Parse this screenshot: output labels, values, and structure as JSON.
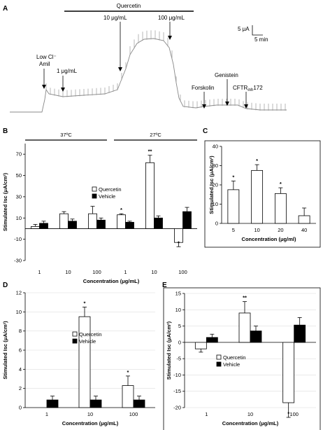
{
  "figure": {
    "panel_labels": [
      "A",
      "B",
      "C",
      "D",
      "E"
    ]
  },
  "trace": {
    "title_bar": "Quercetin",
    "annotations": [
      "Low Cl⁻",
      "Amil",
      "1 μg/mL",
      "10 μg/mL",
      "100 μg/mL",
      "Forskolin",
      "Genistein",
      "CFTRinh172"
    ],
    "cftr_main": "CFTR",
    "cftr_sub": "inh",
    "cftr_suffix": "172",
    "scale_y": "5 μA",
    "scale_x": "5 min"
  },
  "chart_data": [
    {
      "panel": "B",
      "type": "bar",
      "categories": [
        "1",
        "10",
        "100",
        "1",
        "10",
        "100"
      ],
      "groups": [
        "37ºC",
        "27ºC"
      ],
      "series": [
        {
          "name": "Quercetin",
          "values": [
            2,
            14,
            14,
            13,
            62,
            -13
          ],
          "errors": [
            2,
            2,
            7,
            1,
            7,
            4
          ],
          "sig": [
            "",
            "",
            "",
            "*",
            "**",
            "*"
          ],
          "color": "#ffffff"
        },
        {
          "name": "Vehicle",
          "values": [
            5,
            7,
            8,
            6,
            10,
            16
          ],
          "errors": [
            2,
            2,
            2,
            1,
            2,
            4
          ],
          "sig": [
            "",
            "",
            "",
            "",
            "",
            ""
          ],
          "color": "#000000"
        }
      ],
      "xlabel": "Concentration (μg/mL)",
      "ylabel": "Stimulated Isc (μA/cm²)",
      "ylim": [
        -30,
        80
      ],
      "yticks": [
        -30,
        -10,
        10,
        30,
        50,
        70
      ],
      "grid": false,
      "legend": "middle"
    },
    {
      "panel": "C",
      "type": "bar",
      "categories": [
        "5",
        "10",
        "20",
        "40"
      ],
      "series": [
        {
          "name": "",
          "values": [
            17.5,
            27.5,
            15.5,
            4
          ],
          "errors": [
            4.5,
            3,
            3,
            4
          ],
          "sig": [
            "*",
            "*",
            "*",
            ""
          ],
          "color": "#ffffff"
        }
      ],
      "xlabel": "Concentration (μg/ml)",
      "ylabel": "Stimulated Isc (μA/cm²)",
      "ylim": [
        0,
        40
      ],
      "yticks": [
        0,
        10,
        20,
        30,
        40
      ],
      "grid": false
    },
    {
      "panel": "D",
      "type": "bar",
      "categories": [
        "1",
        "10",
        "100"
      ],
      "series": [
        {
          "name": "Quercetin",
          "values": [
            0,
            9.5,
            2.3
          ],
          "errors": [
            0,
            1,
            1
          ],
          "sig": [
            "",
            "*",
            "*"
          ],
          "color": "#ffffff"
        },
        {
          "name": "Vehicle",
          "values": [
            0.8,
            0.8,
            0.8
          ],
          "errors": [
            0.4,
            0.4,
            0.4
          ],
          "sig": [
            "",
            "",
            ""
          ],
          "color": "#000000"
        }
      ],
      "xlabel": "Concentration (μg/mL)",
      "ylabel": "Stimulated Isc (μA/cm²)",
      "ylim": [
        0,
        12
      ],
      "yticks": [
        0,
        2,
        4,
        6,
        8,
        10,
        12
      ],
      "grid": true,
      "legend": "middle"
    },
    {
      "panel": "E",
      "type": "bar",
      "categories": [
        "1",
        "10",
        "100"
      ],
      "series": [
        {
          "name": "Quercetin",
          "values": [
            -2,
            9,
            -18.5
          ],
          "errors": [
            1,
            3.5,
            4.5
          ],
          "sig": [
            "",
            "**",
            "*"
          ],
          "color": "#ffffff"
        },
        {
          "name": "Vehicle",
          "values": [
            1.5,
            3.5,
            5.3
          ],
          "errors": [
            1,
            1.5,
            2.3
          ],
          "sig": [
            "",
            "",
            ""
          ],
          "color": "#000000"
        }
      ],
      "xlabel": "Concentration (μg/mL)",
      "ylabel": "Stimulated Isc (μA/cm²)",
      "ylim": [
        -20,
        15
      ],
      "yticks": [
        -20,
        -15,
        -10,
        -5,
        0,
        5,
        10,
        15
      ],
      "grid": true,
      "legend": "middle"
    }
  ]
}
